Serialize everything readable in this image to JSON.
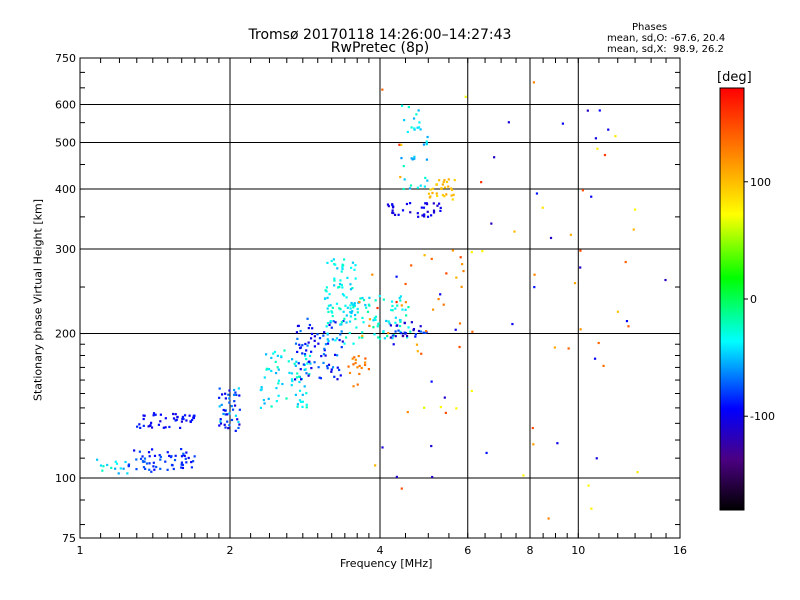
{
  "chart_data": {
    "type": "scatter",
    "title": "Tromsø 20170118 14:26:00–14:27:43",
    "subtitle": "RwPretec (8p)",
    "xlabel": "Frequency [MHz]",
    "ylabel": "Stationary phase Virtual Height [km]",
    "x_scale": "log",
    "y_scale": "log",
    "xlim": [
      1,
      16
    ],
    "ylim": [
      75,
      750
    ],
    "x_ticks": [
      "1",
      "2",
      "4",
      "6",
      "8",
      "10",
      "16"
    ],
    "y_ticks": [
      "75",
      "100",
      "200",
      "300",
      "400",
      "500",
      "600",
      "750"
    ],
    "grid": true,
    "colorbar": {
      "label": "[deg]",
      "range": [
        -180,
        180
      ],
      "ticks": [
        "100",
        "0",
        "-100"
      ],
      "colors": [
        "#000000",
        "#4b0082",
        "#0000ff",
        "#00ffff",
        "#00ff00",
        "#ffff00",
        "#ff8000",
        "#ff0000"
      ]
    },
    "stats_heading": "Phases",
    "stats_lines": [
      "mean, sd,O: -67.6, 20.4",
      "mean, sd,X:  98.9, 26.2"
    ],
    "clusters": [
      {
        "x": [
          1.25,
          1.7
        ],
        "y": [
          103,
          115
        ],
        "phase": [
          -100,
          -70
        ],
        "n": 60
      },
      {
        "x": [
          1.03,
          1.25
        ],
        "y": [
          102,
          112
        ],
        "phase": [
          -60,
          -20
        ],
        "n": 14
      },
      {
        "x": [
          1.3,
          1.7
        ],
        "y": [
          127,
          137
        ],
        "phase": [
          -110,
          -85
        ],
        "n": 45
      },
      {
        "x": [
          1.9,
          2.1
        ],
        "y": [
          125,
          155
        ],
        "phase": [
          -110,
          -40
        ],
        "n": 45
      },
      {
        "x": [
          2.3,
          2.9
        ],
        "y": [
          140,
          185
        ],
        "phase": [
          -60,
          -20
        ],
        "n": 70
      },
      {
        "x": [
          2.7,
          3.4
        ],
        "y": [
          160,
          215
        ],
        "phase": [
          -110,
          -60
        ],
        "n": 80
      },
      {
        "x": [
          3.1,
          3.6
        ],
        "y": [
          190,
          290
        ],
        "phase": [
          -50,
          -20
        ],
        "n": 85
      },
      {
        "x": [
          3.5,
          4.6
        ],
        "y": [
          195,
          240
        ],
        "phase": [
          -50,
          -15
        ],
        "n": 70
      },
      {
        "x": [
          3.45,
          3.8
        ],
        "y": [
          155,
          180
        ],
        "phase": [
          115,
          140
        ],
        "n": 18
      },
      {
        "x": [
          4.2,
          5.0
        ],
        "y": [
          196,
          212
        ],
        "phase": [
          -130,
          -70
        ],
        "n": 28
      },
      {
        "x": [
          4.1,
          5.3
        ],
        "y": [
          350,
          375
        ],
        "phase": [
          -115,
          -90
        ],
        "n": 35
      },
      {
        "x": [
          4.4,
          5.0
        ],
        "y": [
          400,
          600
        ],
        "phase": [
          -60,
          -20
        ],
        "n": 35
      },
      {
        "x": [
          5.0,
          5.7
        ],
        "y": [
          380,
          420
        ],
        "phase": [
          85,
          110
        ],
        "n": 30
      },
      {
        "x": [
          3.6,
          6.2
        ],
        "y": [
          180,
          300
        ],
        "phase": [
          100,
          160
        ],
        "n": 30
      },
      {
        "x": [
          3.9,
          15.0
        ],
        "y": [
          80,
          680
        ],
        "phase": [
          60,
          160
        ],
        "n": 45
      },
      {
        "x": [
          4.0,
          15.0
        ],
        "y": [
          100,
          600
        ],
        "phase": [
          -120,
          -90
        ],
        "n": 30
      }
    ]
  }
}
